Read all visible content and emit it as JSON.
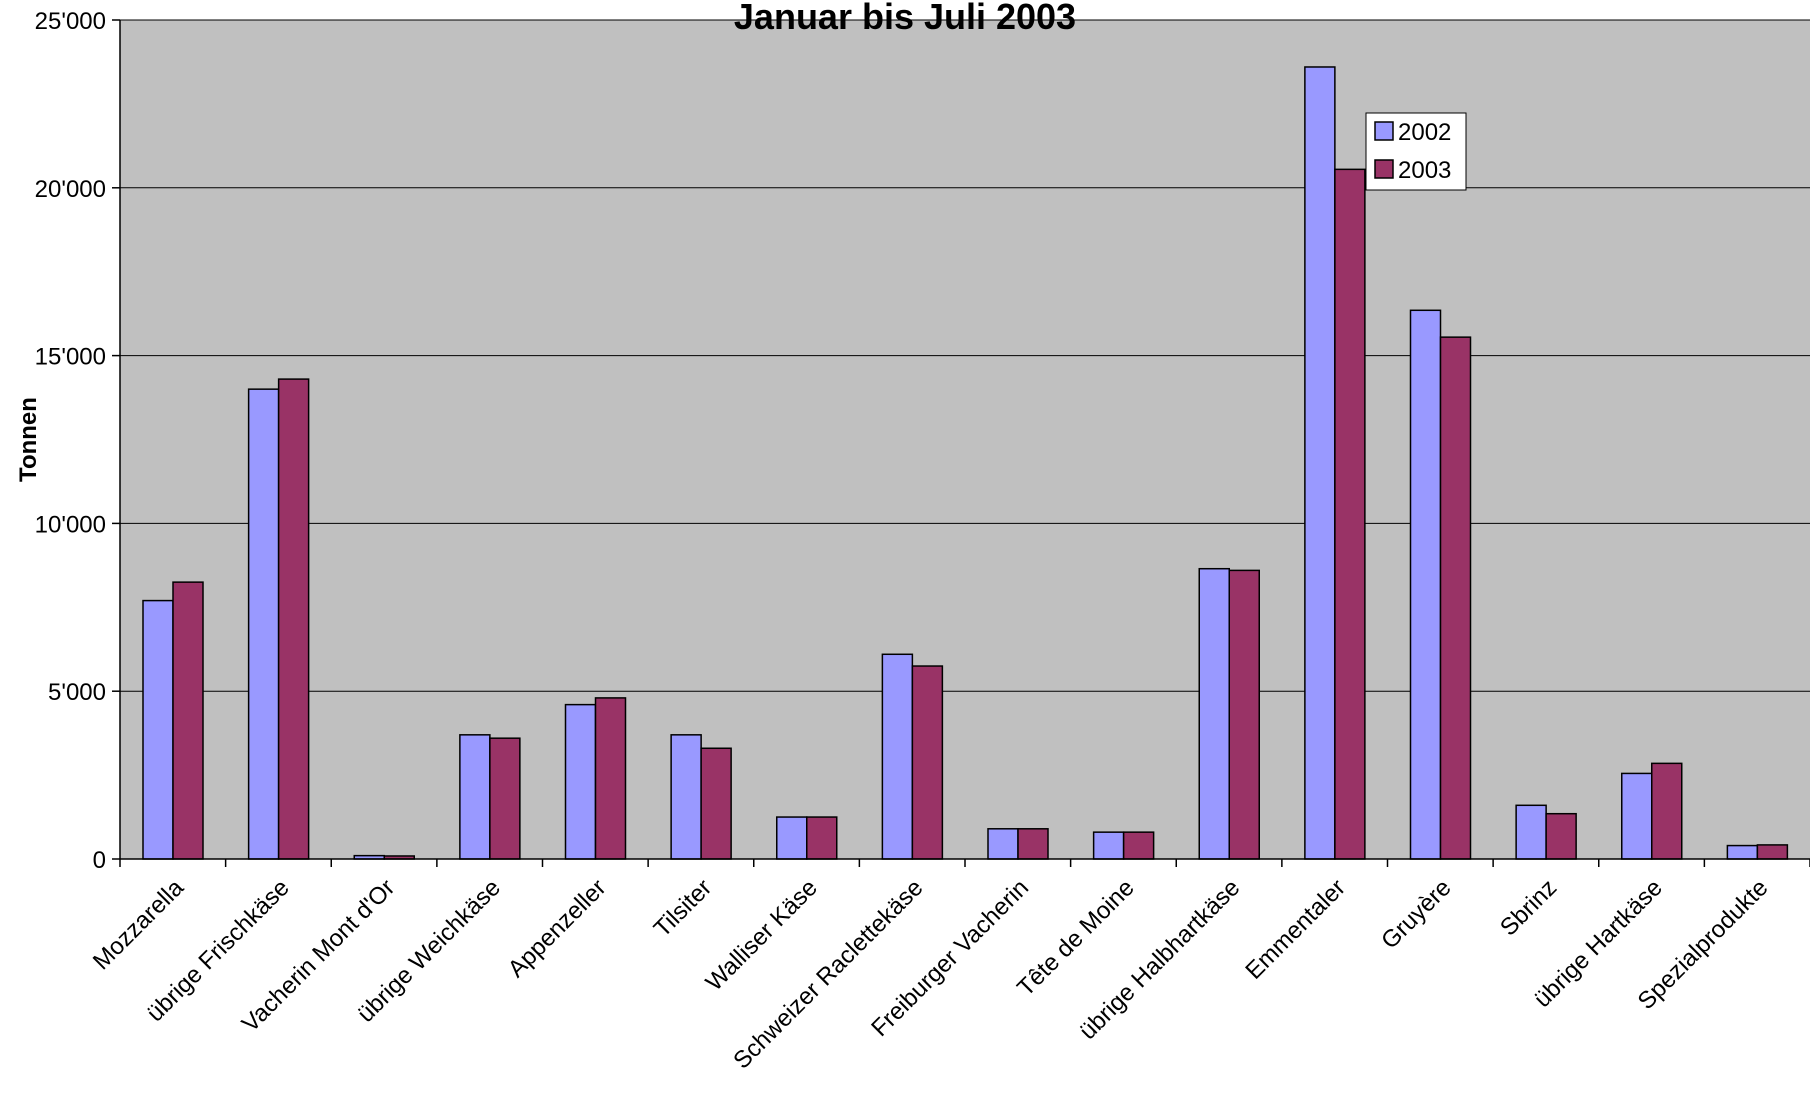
{
  "chart_data": {
    "type": "bar",
    "title": "Januar bis Juli 2003",
    "xlabel": "",
    "ylabel": "Tonnen",
    "ylim": [
      0,
      25000
    ],
    "yticks": [
      0,
      5000,
      10000,
      15000,
      20000,
      25000
    ],
    "ytick_labels": [
      "0",
      "5'000",
      "10'000",
      "15'000",
      "20'000",
      "25'000"
    ],
    "grid": true,
    "legend_position": "top-right",
    "categories": [
      "Mozzarella",
      "übrige Frischkäse",
      "Vacherin Mont d'Or",
      "übrige Weichkäse",
      "Appenzeller",
      "Tilsiter",
      "Walliser Käse",
      "Schweizer Raclettekäse",
      "Freiburger Vacherin",
      "Tête de Moine",
      "übrige Halbhartkäse",
      "Emmentaler",
      "Gruyère",
      "Sbrinz",
      "übrige Hartkäse",
      "Spezialprodukte"
    ],
    "series": [
      {
        "name": "2002",
        "color": "#9999ff",
        "values": [
          7700,
          14000,
          100,
          3700,
          4600,
          3700,
          1250,
          6100,
          900,
          800,
          8650,
          23600,
          16350,
          1600,
          2550,
          400
        ]
      },
      {
        "name": "2003",
        "color": "#993366",
        "values": [
          8250,
          14300,
          90,
          3600,
          4800,
          3300,
          1250,
          5750,
          900,
          800,
          8600,
          20550,
          15550,
          1350,
          2850,
          420
        ]
      }
    ],
    "plot_background": "#c0c0c0",
    "gridline_color": "#000000"
  }
}
